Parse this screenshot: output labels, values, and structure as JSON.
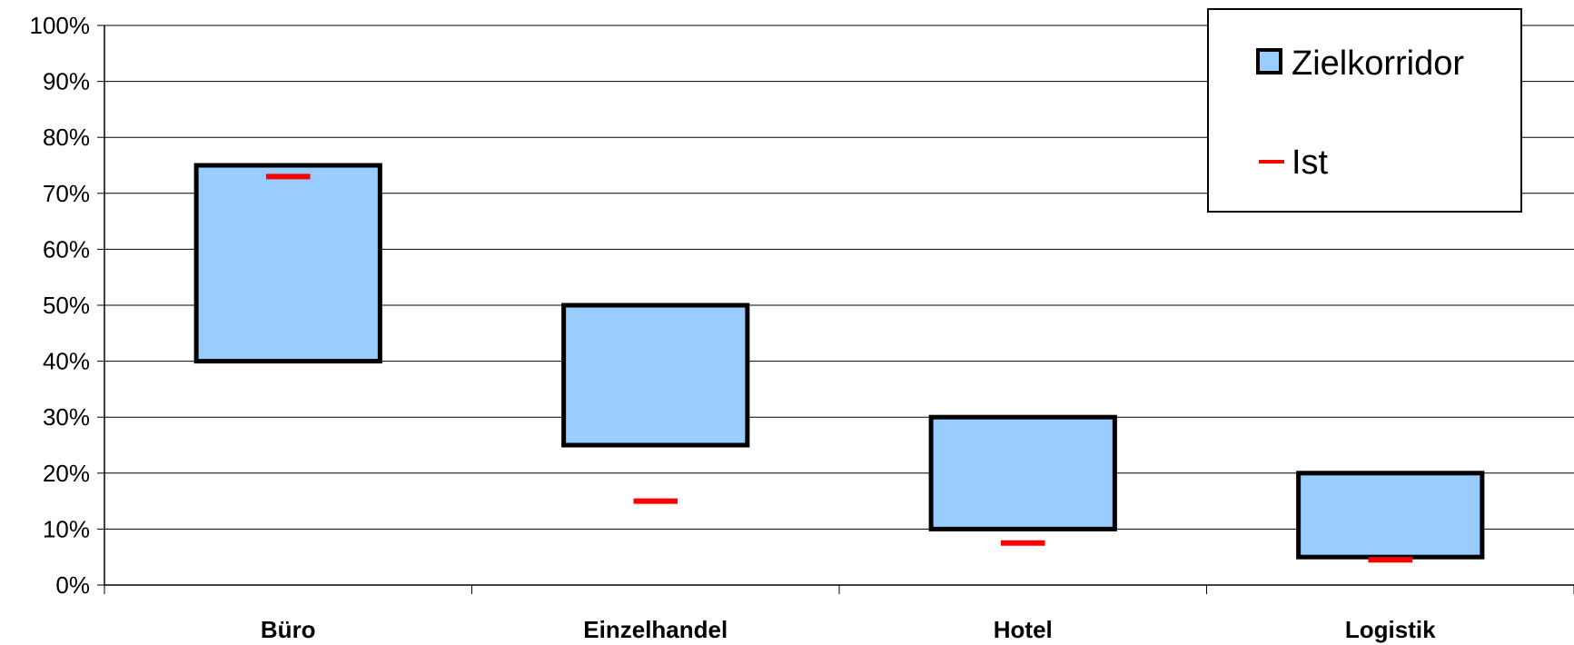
{
  "chart_data": {
    "type": "bar",
    "categories": [
      "Büro",
      "Einzelhandel",
      "Hotel",
      "Logistik"
    ],
    "series": [
      {
        "name": "Zielkorridor",
        "kind": "floating-range",
        "low": [
          40,
          25,
          10,
          5
        ],
        "high": [
          75,
          50,
          30,
          20
        ],
        "color": "#99ccff",
        "border_color": "#000000"
      },
      {
        "name": "Ist",
        "kind": "marker",
        "values": [
          73,
          15,
          7.5,
          4.5
        ],
        "color": "#ff0000"
      }
    ],
    "yticks": [
      "0%",
      "10%",
      "20%",
      "30%",
      "40%",
      "50%",
      "60%",
      "70%",
      "80%",
      "90%",
      "100%"
    ],
    "ylim": [
      0,
      100
    ],
    "grid": true,
    "legend_position": "top-right",
    "title": "",
    "xlabel": "",
    "ylabel": ""
  }
}
